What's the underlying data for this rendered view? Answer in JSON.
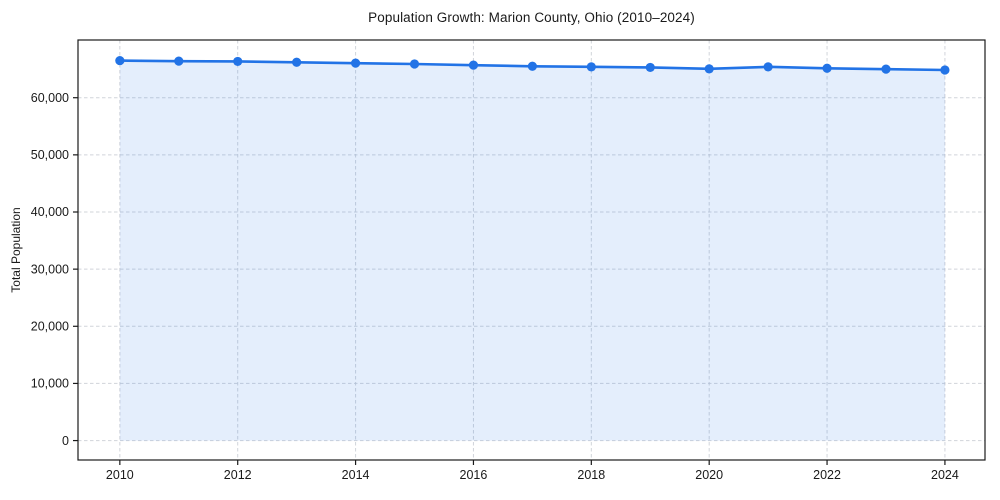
{
  "chart_data": {
    "type": "line",
    "title": "Population Growth: Marion County, Ohio (2010–2024)",
    "xlabel": "",
    "ylabel": "Total Population",
    "x": [
      2010,
      2011,
      2012,
      2013,
      2014,
      2015,
      2016,
      2017,
      2018,
      2019,
      2020,
      2021,
      2022,
      2023,
      2024
    ],
    "series": [
      {
        "name": "Total Population",
        "values": [
          66500,
          66400,
          66350,
          66200,
          66050,
          65900,
          65700,
          65500,
          65400,
          65300,
          65050,
          65400,
          65150,
          65000,
          64850
        ]
      }
    ],
    "xticks": [
      2010,
      2012,
      2014,
      2016,
      2018,
      2020,
      2022,
      2024
    ],
    "yticks": [
      0,
      10000,
      20000,
      30000,
      40000,
      50000,
      60000
    ],
    "xlim": [
      2009.29,
      2024.68
    ],
    "ylim": [
      -3400,
      70100
    ],
    "grid": true,
    "legend_position": "none",
    "line_color": "#2273e6",
    "marker": "circle",
    "area_fill": true,
    "fill_opacity": 0.12,
    "grid_color": "#c9cdd4",
    "axis_color": "#1a1a1a",
    "plot_bg": "#ffffff"
  }
}
